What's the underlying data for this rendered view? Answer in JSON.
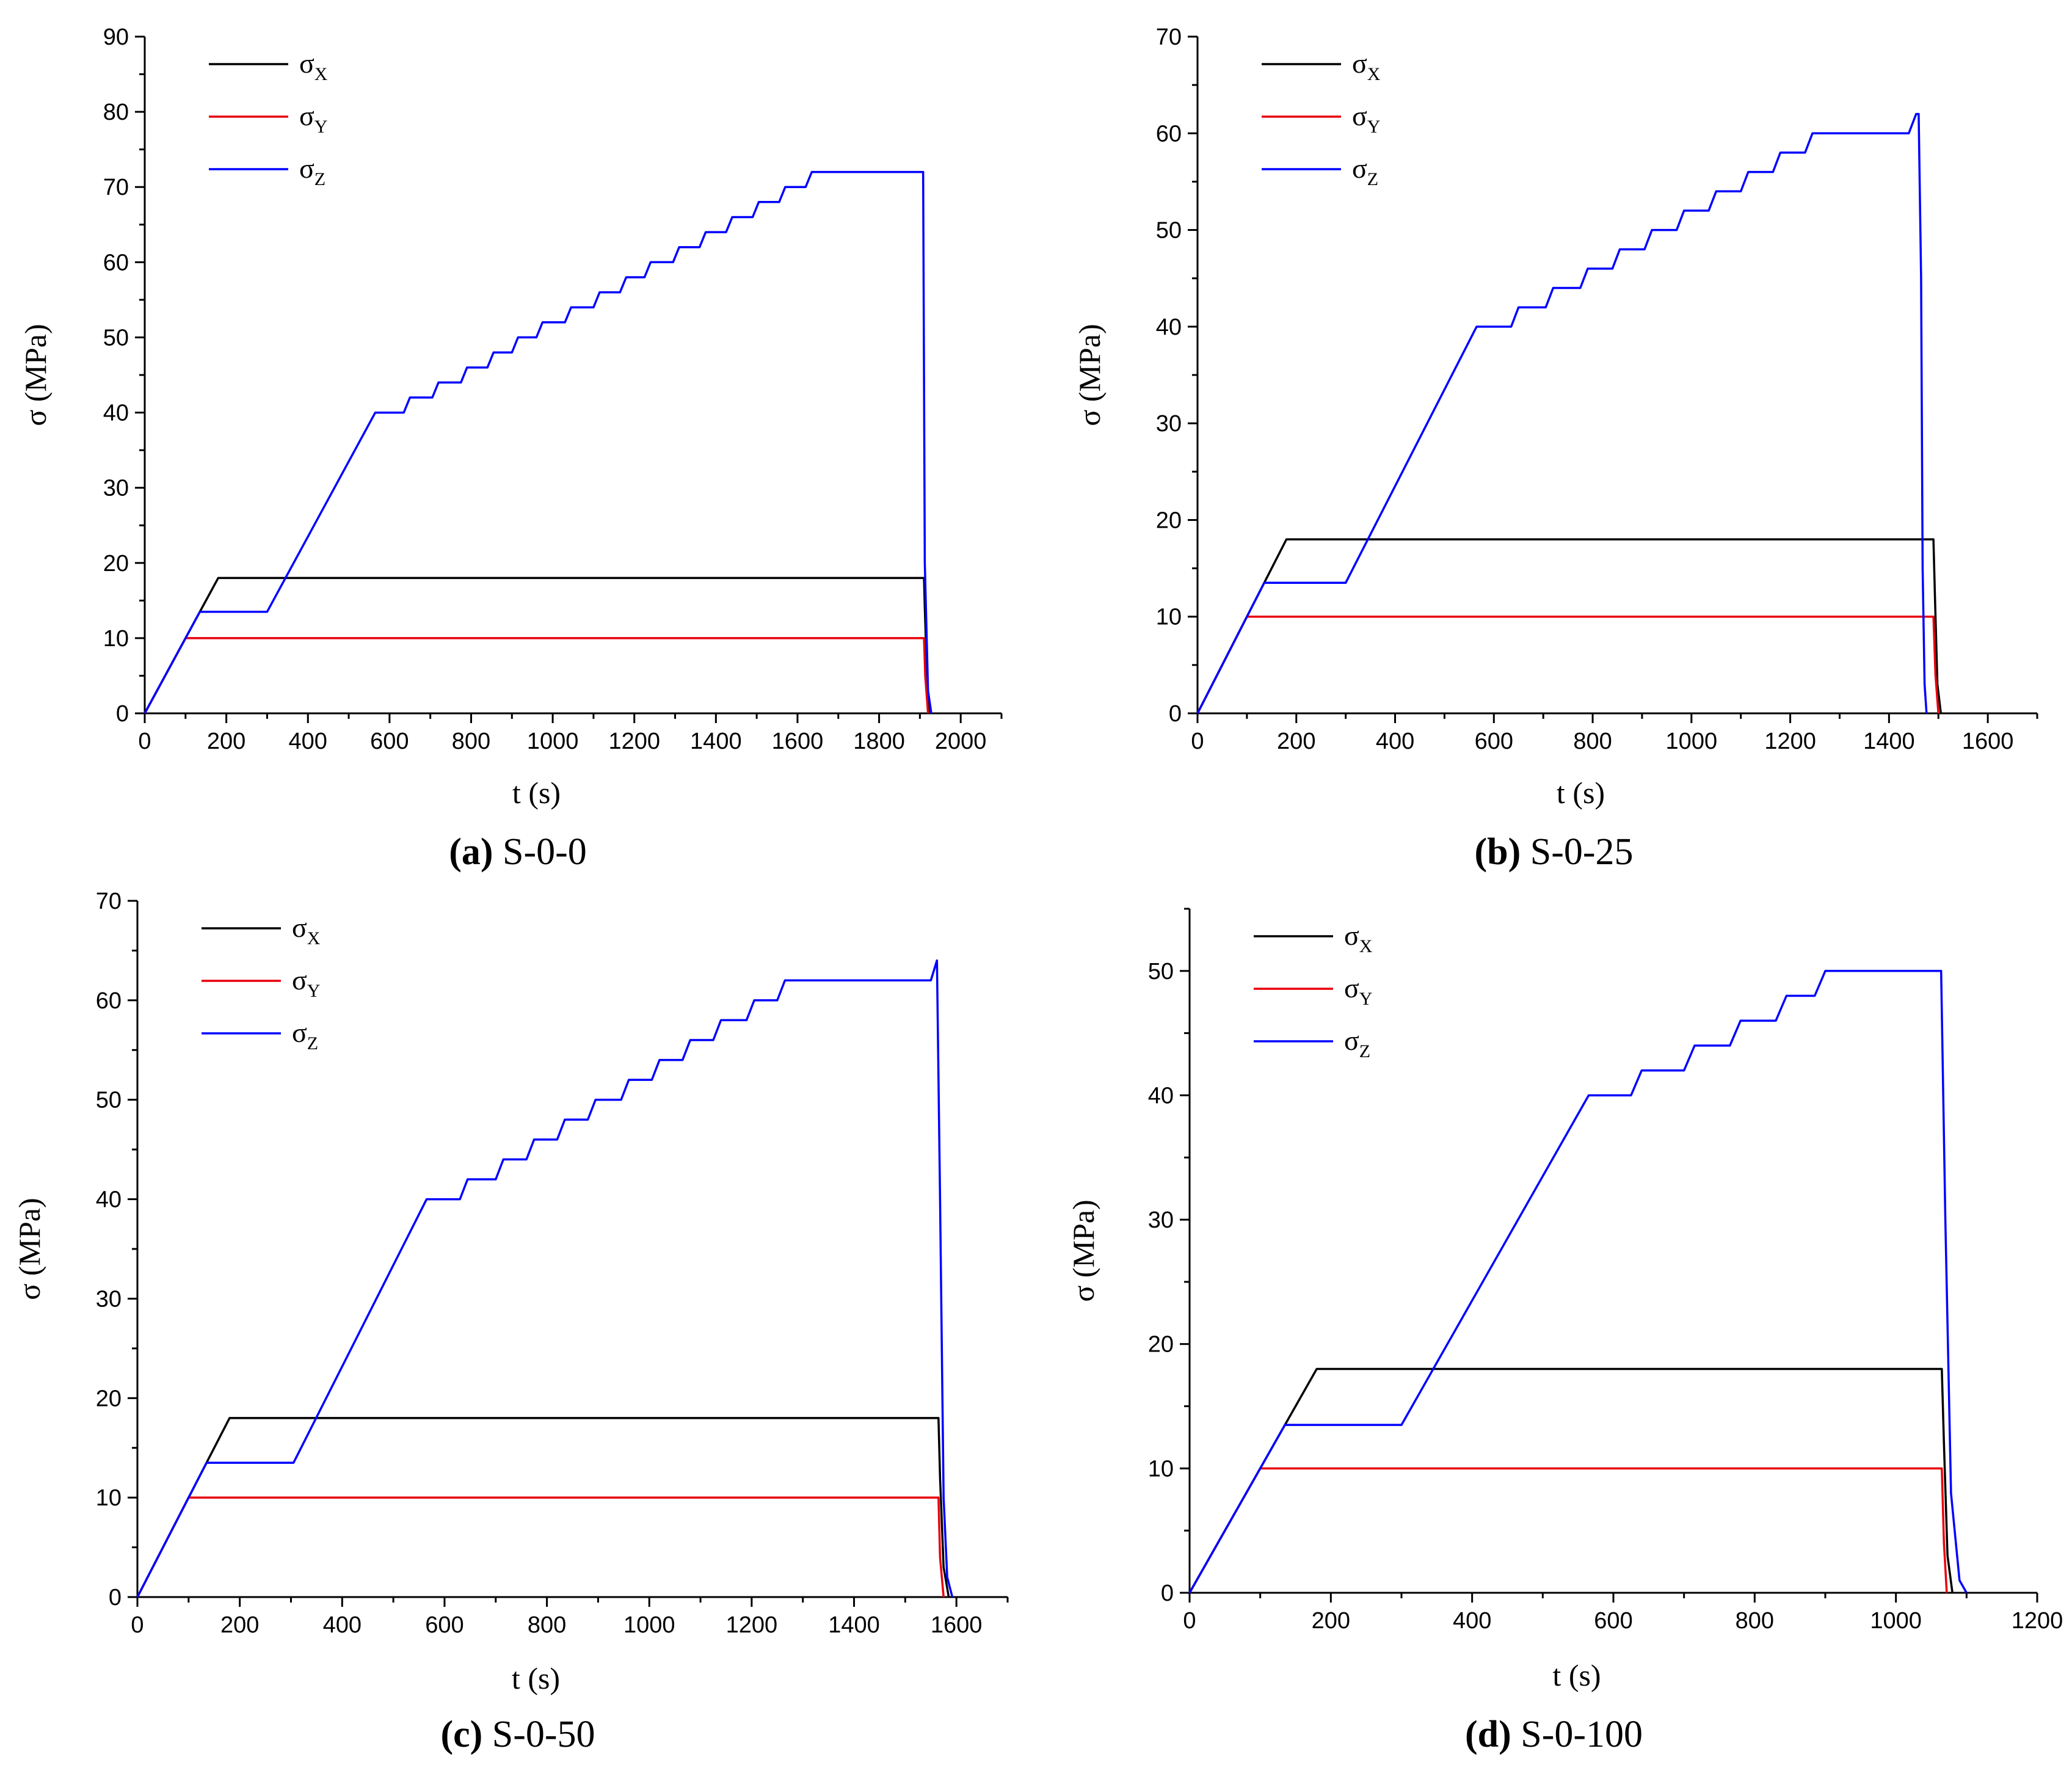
{
  "chart_data": [
    {
      "id": "a",
      "type": "line",
      "caption_letter": "(a)",
      "caption_letter_inner": "a",
      "caption_text": "S-0-0",
      "xlabel": "t (s)",
      "ylabel": "σ (MPa)",
      "xlim": [
        0,
        2100
      ],
      "ylim": [
        0,
        90
      ],
      "xticks": [
        0,
        200,
        400,
        600,
        800,
        1000,
        1200,
        1400,
        1600,
        1800,
        2000
      ],
      "yticks": [
        0,
        10,
        20,
        30,
        40,
        50,
        60,
        70,
        80,
        90
      ],
      "legend_position": "top-left",
      "series": [
        {
          "name": "σX",
          "symbol": "σ",
          "subscript": "X",
          "color": "#000000",
          "x": [
            0,
            180,
            1910,
            1912,
            1918,
            1925
          ],
          "y": [
            0,
            18,
            18,
            14,
            4,
            0
          ]
        },
        {
          "name": "σY",
          "symbol": "σ",
          "subscript": "Y",
          "color": "#e8000b",
          "x": [
            0,
            100,
            1910,
            1913,
            1920
          ],
          "y": [
            0,
            10,
            10,
            5,
            0
          ]
        },
        {
          "name": "σZ",
          "symbol": "σ",
          "subscript": "Z",
          "color": "#0000ff",
          "x": [
            0,
            135,
            300,
            565,
            635,
            650,
            705,
            720,
            775,
            790,
            840,
            855,
            900,
            915,
            960,
            975,
            1030,
            1045,
            1100,
            1115,
            1165,
            1180,
            1225,
            1240,
            1295,
            1310,
            1360,
            1375,
            1425,
            1440,
            1490,
            1505,
            1555,
            1570,
            1620,
            1635,
            1685,
            1700,
            1750,
            1765,
            1815,
            1830,
            1880,
            1900,
            1908,
            1912,
            1920,
            1928
          ],
          "y": [
            0,
            13.5,
            13.5,
            40,
            40,
            42,
            42,
            44,
            44,
            46,
            46,
            48,
            48,
            50,
            50,
            52,
            52,
            54,
            54,
            56,
            56,
            58,
            58,
            60,
            60,
            62,
            62,
            64,
            64,
            66,
            66,
            68,
            68,
            70,
            70,
            72,
            72,
            72,
            72,
            72,
            72,
            72,
            72,
            72,
            72,
            20,
            3,
            0
          ]
        }
      ]
    },
    {
      "id": "b",
      "type": "line",
      "caption_letter": "(b)",
      "caption_letter_inner": "b",
      "caption_text": "S-0-25",
      "xlabel": "t (s)",
      "ylabel": "σ (MPa)",
      "xlim": [
        0,
        1700
      ],
      "ylim": [
        0,
        70
      ],
      "xticks": [
        0,
        200,
        400,
        600,
        800,
        1000,
        1200,
        1400,
        1600
      ],
      "yticks": [
        0,
        10,
        20,
        30,
        40,
        50,
        60,
        70
      ],
      "legend_position": "top-left",
      "series": [
        {
          "name": "σX",
          "symbol": "σ",
          "subscript": "X",
          "color": "#000000",
          "x": [
            0,
            180,
            1490,
            1493,
            1498,
            1505
          ],
          "y": [
            0,
            18,
            18,
            12,
            3,
            0
          ]
        },
        {
          "name": "σY",
          "symbol": "σ",
          "subscript": "Y",
          "color": "#e8000b",
          "x": [
            0,
            100,
            1490,
            1494,
            1500
          ],
          "y": [
            0,
            10,
            10,
            4,
            0
          ]
        },
        {
          "name": "σZ",
          "symbol": "σ",
          "subscript": "Z",
          "color": "#0000ff",
          "x": [
            0,
            135,
            300,
            565,
            635,
            650,
            705,
            720,
            775,
            790,
            840,
            855,
            905,
            920,
            970,
            985,
            1035,
            1050,
            1100,
            1115,
            1165,
            1180,
            1230,
            1245,
            1295,
            1310,
            1360,
            1375,
            1440,
            1455,
            1460,
            1465,
            1468,
            1472,
            1476
          ],
          "y": [
            0,
            13.5,
            13.5,
            40,
            40,
            42,
            42,
            44,
            44,
            46,
            46,
            48,
            48,
            50,
            50,
            52,
            52,
            54,
            54,
            56,
            56,
            58,
            58,
            60,
            60,
            60,
            60,
            60,
            60,
            62,
            62,
            45,
            15,
            3,
            0
          ]
        }
      ]
    },
    {
      "id": "c",
      "type": "line",
      "caption_letter": "(c)",
      "caption_letter_inner": "c",
      "caption_text": "S-0-50",
      "xlabel": "t (s)",
      "ylabel": "σ (MPa)",
      "xlim": [
        0,
        1700
      ],
      "ylim": [
        0,
        70
      ],
      "xticks": [
        0,
        200,
        400,
        600,
        800,
        1000,
        1200,
        1400,
        1600
      ],
      "yticks": [
        0,
        10,
        20,
        30,
        40,
        50,
        60,
        70
      ],
      "legend_position": "top-left",
      "series": [
        {
          "name": "σX",
          "symbol": "σ",
          "subscript": "X",
          "color": "#000000",
          "x": [
            0,
            180,
            1565,
            1568,
            1575,
            1585
          ],
          "y": [
            0,
            18,
            18,
            12,
            3,
            0
          ]
        },
        {
          "name": "σY",
          "symbol": "σ",
          "subscript": "Y",
          "color": "#e8000b",
          "x": [
            0,
            100,
            1565,
            1568,
            1575
          ],
          "y": [
            0,
            10,
            10,
            4,
            0
          ]
        },
        {
          "name": "σZ",
          "symbol": "σ",
          "subscript": "Z",
          "color": "#0000ff",
          "x": [
            0,
            135,
            305,
            565,
            630,
            645,
            700,
            715,
            760,
            775,
            820,
            835,
            880,
            895,
            945,
            960,
            1005,
            1020,
            1065,
            1080,
            1125,
            1140,
            1190,
            1205,
            1250,
            1265,
            1310,
            1325,
            1375,
            1390,
            1470,
            1475,
            1550,
            1562,
            1568,
            1575,
            1582,
            1592
          ],
          "y": [
            0,
            13.5,
            13.5,
            40,
            40,
            42,
            42,
            44,
            44,
            46,
            46,
            48,
            48,
            50,
            50,
            52,
            52,
            54,
            54,
            56,
            56,
            58,
            58,
            60,
            60,
            62,
            62,
            62,
            62,
            62,
            62,
            62,
            62,
            64,
            40,
            10,
            2,
            0
          ]
        }
      ]
    },
    {
      "id": "d",
      "type": "line",
      "caption_letter": "(d)",
      "caption_letter_inner": "d",
      "caption_text": "S-0-100",
      "xlabel": "t (s)",
      "ylabel": "σ (MPa)",
      "xlim": [
        0,
        1200
      ],
      "ylim": [
        0,
        55
      ],
      "xticks": [
        0,
        200,
        400,
        600,
        800,
        1000,
        1200
      ],
      "yticks": [
        0,
        10,
        20,
        30,
        40,
        50
      ],
      "legend_position": "top-left",
      "series": [
        {
          "name": "σX",
          "symbol": "σ",
          "subscript": "X",
          "color": "#000000",
          "x": [
            0,
            180,
            1065,
            1068,
            1073,
            1080
          ],
          "y": [
            0,
            18,
            18,
            12,
            3,
            0
          ]
        },
        {
          "name": "σY",
          "symbol": "σ",
          "subscript": "Y",
          "color": "#e8000b",
          "x": [
            0,
            100,
            1065,
            1068,
            1072
          ],
          "y": [
            0,
            10,
            10,
            4,
            0
          ]
        },
        {
          "name": "σZ",
          "symbol": "σ",
          "subscript": "Z",
          "color": "#0000ff",
          "x": [
            0,
            135,
            300,
            565,
            625,
            640,
            700,
            715,
            765,
            780,
            830,
            845,
            885,
            900,
            960,
            975,
            1060,
            1064,
            1070,
            1078,
            1090,
            1100
          ],
          "y": [
            0,
            13.5,
            13.5,
            40,
            40,
            42,
            42,
            44,
            44,
            46,
            46,
            48,
            48,
            50,
            50,
            50,
            50,
            50,
            30,
            8,
            1,
            0
          ]
        }
      ]
    }
  ]
}
